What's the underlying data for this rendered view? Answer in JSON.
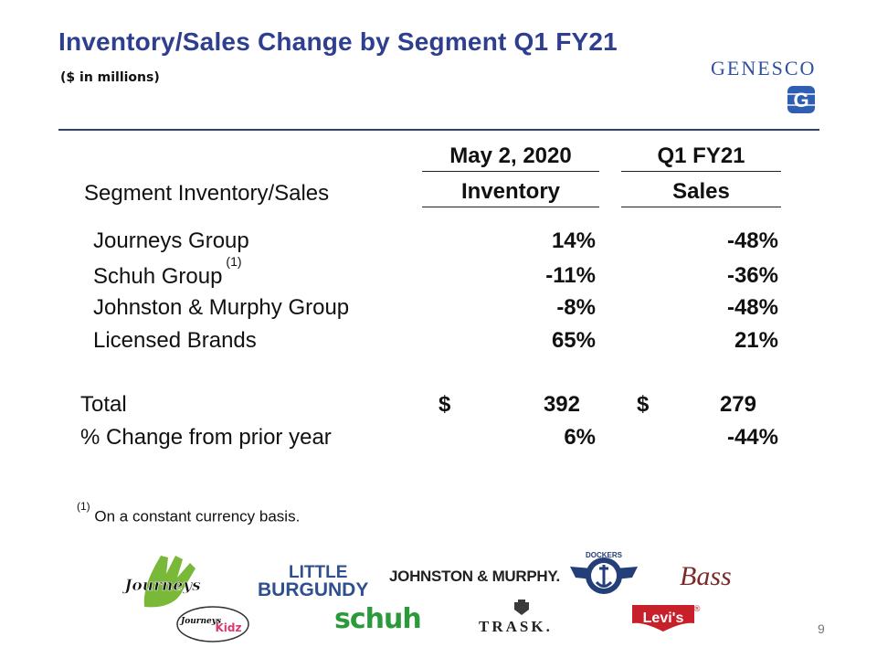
{
  "header": {
    "title": "Inventory/Sales Change by Segment Q1 FY21",
    "subtitle": "($ in millions)",
    "brand": "GENESCO",
    "brand_mark": "G"
  },
  "table": {
    "col1_header_top": "May 2, 2020",
    "col1_header_bottom": "Inventory",
    "col2_header_top": "Q1 FY21",
    "col2_header_bottom": "Sales",
    "row_header": "Segment Inventory/Sales",
    "rows": [
      {
        "label": "Journeys Group",
        "note": "",
        "inventory": "14%",
        "sales": "-48%"
      },
      {
        "label": "Schuh Group",
        "note": "(1)",
        "inventory": "-11%",
        "sales": "-36%"
      },
      {
        "label": "Johnston & Murphy Group",
        "note": "",
        "inventory": "-8%",
        "sales": "-48%"
      },
      {
        "label": "Licensed Brands",
        "note": "",
        "inventory": "65%",
        "sales": "21%"
      }
    ],
    "total": {
      "label": "Total",
      "currency": "$",
      "inventory": "392",
      "sales": "279"
    },
    "change": {
      "label": "% Change from prior year",
      "inventory": "6%",
      "sales": "-44%"
    }
  },
  "footnote": {
    "marker": "(1)",
    "text": "On a constant currency basis."
  },
  "logos": {
    "journeys": "Journeys",
    "journeys_kidz_a": "Journeys",
    "journeys_kidz_b": "Kidz",
    "little": "LITTLE",
    "burgundy": "BURGUNDY",
    "johnston_murphy": "JOHNSTON & MURPHY.",
    "schuh": "schuh",
    "trask": "TRASK.",
    "dockers": "DOCKERS",
    "bass": "Bass",
    "levis": "Levi's",
    "registered": "®"
  },
  "page_number": "9",
  "colors": {
    "title": "#2f3f8f",
    "rule": "#2f3f6f",
    "schuh": "#2a9a3a",
    "levis": "#c8202a",
    "journeys_green": "#7ab83a"
  }
}
